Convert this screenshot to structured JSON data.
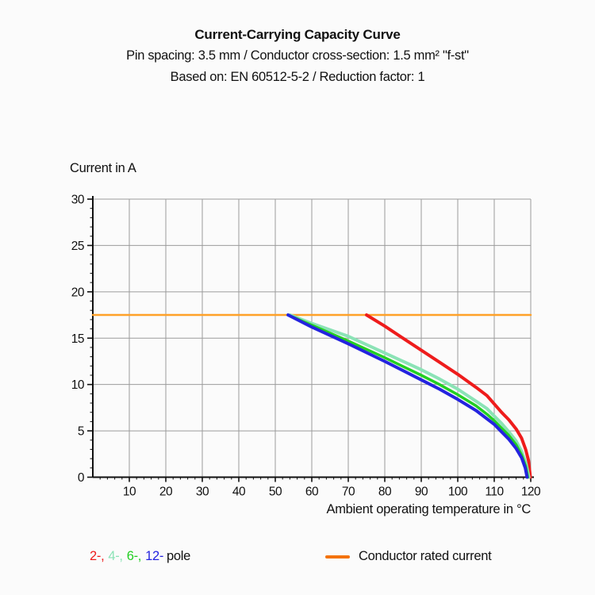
{
  "header": {
    "title": "Current-Carrying Capacity Curve",
    "subtitle1": "Pin spacing: 3.5 mm / Conductor cross-section: 1.5 mm² \"f-st\"",
    "subtitle2": "Based on: EN 60512-5-2 / Reduction factor: 1"
  },
  "chart_data": {
    "type": "line",
    "title": "Current-Carrying Capacity Curve",
    "xlabel": "Ambient operating temperature in °C",
    "ylabel": "Current in A",
    "xlim": [
      0,
      120
    ],
    "ylim": [
      0,
      30
    ],
    "xticks": [
      10,
      20,
      30,
      40,
      50,
      60,
      70,
      80,
      90,
      100,
      110,
      120
    ],
    "yticks": [
      0,
      5,
      10,
      15,
      20,
      25,
      30
    ],
    "x_minor_step": 2,
    "y_minor_step": 1,
    "grid": true,
    "grid_color": "#9b9b9b",
    "axis_color": "#111111",
    "legend_position": "bottom",
    "series": [
      {
        "name": "Conductor rated current",
        "color": "#FFA128",
        "width": 2.5,
        "points": [
          [
            0,
            17.5
          ],
          [
            120,
            17.5
          ]
        ]
      },
      {
        "name": "2-pole",
        "color": "#EE1C1C",
        "width": 4,
        "points": [
          [
            75,
            17.5
          ],
          [
            80,
            16.3
          ],
          [
            85,
            15.0
          ],
          [
            90,
            13.7
          ],
          [
            95,
            12.4
          ],
          [
            100,
            11.1
          ],
          [
            105,
            9.7
          ],
          [
            108,
            8.8
          ],
          [
            110,
            7.9
          ],
          [
            112,
            7.0
          ],
          [
            114,
            6.2
          ],
          [
            116,
            5.2
          ],
          [
            117.5,
            4.2
          ],
          [
            118.6,
            3.0
          ],
          [
            119.4,
            1.8
          ],
          [
            119.9,
            0
          ]
        ]
      },
      {
        "name": "4-pole",
        "color": "#8BE3B6",
        "width": 4,
        "points": [
          [
            54,
            17.5
          ],
          [
            60,
            16.6
          ],
          [
            70,
            15.2
          ],
          [
            80,
            13.4
          ],
          [
            90,
            11.6
          ],
          [
            95,
            10.6
          ],
          [
            100,
            9.5
          ],
          [
            105,
            8.2
          ],
          [
            108,
            7.4
          ],
          [
            110,
            6.6
          ],
          [
            112,
            5.8
          ],
          [
            114,
            4.9
          ],
          [
            116,
            3.9
          ],
          [
            117.5,
            2.8
          ],
          [
            118.7,
            1.5
          ],
          [
            119.5,
            0
          ]
        ]
      },
      {
        "name": "6-pole",
        "color": "#23CF23",
        "width": 3.5,
        "points": [
          [
            53.5,
            17.5
          ],
          [
            60,
            16.4
          ],
          [
            70,
            14.7
          ],
          [
            80,
            12.9
          ],
          [
            90,
            11.0
          ],
          [
            95,
            10.0
          ],
          [
            100,
            8.9
          ],
          [
            105,
            7.7
          ],
          [
            108,
            6.8
          ],
          [
            110,
            6.1
          ],
          [
            112,
            5.3
          ],
          [
            114,
            4.5
          ],
          [
            116,
            3.5
          ],
          [
            117.5,
            2.4
          ],
          [
            118.6,
            1.2
          ],
          [
            119.2,
            0
          ]
        ]
      },
      {
        "name": "12-pole",
        "color": "#2423DF",
        "width": 4,
        "points": [
          [
            53.5,
            17.5
          ],
          [
            60,
            16.2
          ],
          [
            70,
            14.4
          ],
          [
            80,
            12.5
          ],
          [
            90,
            10.5
          ],
          [
            95,
            9.5
          ],
          [
            100,
            8.4
          ],
          [
            105,
            7.2
          ],
          [
            108,
            6.3
          ],
          [
            110,
            5.7
          ],
          [
            112,
            4.9
          ],
          [
            114,
            4.1
          ],
          [
            116,
            3.1
          ],
          [
            117.5,
            2.1
          ],
          [
            118.5,
            1.0
          ],
          [
            119,
            0
          ]
        ]
      }
    ]
  },
  "legend": {
    "poles": [
      {
        "label": "2-,",
        "color": "#EE1C1C"
      },
      {
        "label": "4-,",
        "color": "#8BE3B6"
      },
      {
        "label": "6-,",
        "color": "#23CF23"
      },
      {
        "label": "12-",
        "color": "#2423DF"
      }
    ],
    "pole_word": "pole",
    "rated": {
      "label": "Conductor rated current",
      "color": "#F4730B"
    }
  }
}
